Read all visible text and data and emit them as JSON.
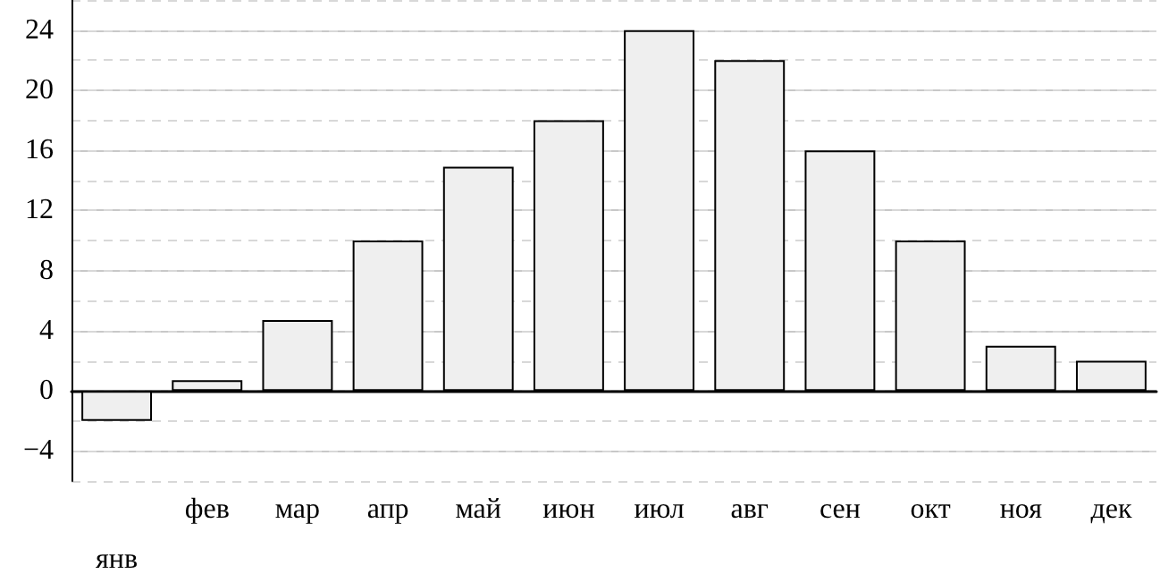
{
  "chart_data": {
    "type": "bar",
    "categories": [
      "янв",
      "фев",
      "мар",
      "апр",
      "май",
      "июн",
      "июл",
      "авг",
      "сен",
      "окт",
      "ноя",
      "дек"
    ],
    "values": [
      -2,
      0.7,
      4.7,
      10,
      14.9,
      18,
      24,
      22,
      16,
      10,
      3,
      2
    ],
    "color": "#efefef",
    "ylim": [
      -6,
      26
    ],
    "yticks": [
      -4,
      0,
      4,
      8,
      12,
      16,
      20,
      24
    ],
    "grid": true
  }
}
